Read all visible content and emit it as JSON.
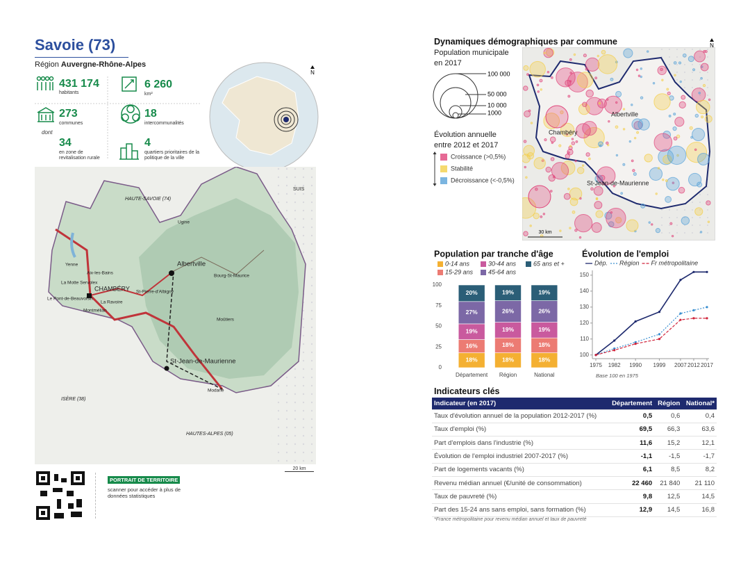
{
  "header": {
    "title": "Savoie (73)",
    "region_label": "Région",
    "region": "Auvergne-Rhône-Alpes"
  },
  "stats": [
    {
      "value": "431 174",
      "label": "habitants"
    },
    {
      "value": "6 260",
      "label": "km²"
    },
    {
      "value": "273",
      "label": "communes"
    },
    {
      "value": "18",
      "label": "intercommunalités"
    },
    {
      "value": "34",
      "label": "en zone de revitalisation rurale"
    },
    {
      "value": "4",
      "label": "quartiers prioritaires de la politique de la ville"
    }
  ],
  "dont": "dont",
  "north": "N",
  "left_map": {
    "labels": [
      "HAUTE-SAVOIE (74)",
      "SUIS",
      "Ugine",
      "Albertville",
      "Bourg-St-Maurice",
      "Yenne",
      "Aix-les-Bains",
      "La Motte Servolex",
      "CHAMBÉRY",
      "Le Pont-de-Beauvoisin",
      "La Ravoire",
      "Montmélian",
      "St-Pierre-d'Albigny",
      "Moûtiers",
      "St-Jean-de-Maurienne",
      "Modane",
      "ISÈRE (38)",
      "HAUTES-ALPES (05)"
    ],
    "scale": "20 km"
  },
  "qr": {
    "tag": "PORTRAIT DE TERRITOIRE",
    "text": "scanner pour accéder à plus de données statistiques"
  },
  "right_map": {
    "title": "Dynamiques démographiques par commune",
    "size_title": "Population municipale",
    "size_subtitle": "en 2017",
    "size_legend": [
      "100 000",
      "50 000",
      "10 000",
      "1000"
    ],
    "color_title": "Évolution annuelle",
    "color_subtitle": "entre 2012 et 2017",
    "color_legend": [
      {
        "label": "Croissance (>0,5%)",
        "color": "#e0457b"
      },
      {
        "label": "Stabilité",
        "color": "#f3cf4a"
      },
      {
        "label": "Décroissance (<-0,5%)",
        "color": "#5aa3d8"
      }
    ],
    "labels": [
      "Albertville",
      "Chambéry",
      "St-Jean-de-Maurienne"
    ],
    "scale": "30 km"
  },
  "chart_data": [
    {
      "type": "bar",
      "stacked": true,
      "title": "Population par tranche d'âge",
      "categories": [
        "Département",
        "Région",
        "National"
      ],
      "series": [
        {
          "name": "0-14 ans",
          "color": "#f4b032",
          "values": [
            18,
            18,
            18
          ],
          "value_labels": [
            "18%",
            "18%",
            "18%"
          ]
        },
        {
          "name": "15-29 ans",
          "color": "#ec7b73",
          "values": [
            16,
            18,
            18
          ],
          "value_labels": [
            "16%",
            "18%",
            "18%"
          ]
        },
        {
          "name": "30-44 ans",
          "color": "#c95a9e",
          "values": [
            19,
            19,
            19
          ],
          "value_labels": [
            "19%",
            "19%",
            "19%"
          ]
        },
        {
          "name": "45-64 ans",
          "color": "#7c68a6",
          "values": [
            27,
            26,
            26
          ],
          "value_labels": [
            "27%",
            "26%",
            "26%"
          ]
        },
        {
          "name": "65 ans et +",
          "color": "#2b5e77",
          "values": [
            20,
            19,
            19
          ],
          "value_labels": [
            "20%",
            "19%",
            "19%"
          ]
        }
      ],
      "ylim": [
        0,
        100
      ],
      "yticks": [
        0,
        25,
        50,
        75,
        100
      ]
    },
    {
      "type": "line",
      "title": "Évolution de l'emploi",
      "subtitle": "Base 100 en 1975",
      "x": [
        1975,
        1982,
        1990,
        1999,
        2007,
        2012,
        2017
      ],
      "series": [
        {
          "name": "Dép.",
          "color": "#1e2a6e",
          "values": [
            100,
            109,
            121,
            127,
            147,
            152,
            152
          ]
        },
        {
          "name": "Région",
          "color": "#3a8fd0",
          "values": [
            100,
            104,
            108,
            113,
            126,
            128,
            130
          ]
        },
        {
          "name": "Fr métropolitaine",
          "color": "#d0233a",
          "values": [
            100,
            103,
            107,
            110,
            122,
            123,
            123
          ]
        }
      ],
      "xlim": [
        1975,
        2017
      ],
      "ylim": [
        99,
        153
      ],
      "xticks": [
        1975,
        1982,
        1990,
        1999,
        2007,
        2012,
        2017
      ],
      "yticks": [
        100,
        110,
        120,
        130,
        140,
        150
      ]
    }
  ],
  "table": {
    "title": "Indicateurs clés",
    "header": [
      "Indicateur (en 2017)",
      "Département",
      "Région",
      "National*"
    ],
    "rows": [
      [
        "Taux d'évolution annuel de la population 2012-2017 (%)",
        "0,5",
        "0,6",
        "0,4"
      ],
      [
        "Taux d'emploi (%)",
        "69,5",
        "66,3",
        "63,6"
      ],
      [
        "Part d'emplois dans l'industrie (%)",
        "11,6",
        "15,2",
        "12,1"
      ],
      [
        "Évolution de l'emploi industriel 2007-2017 (%)",
        "-1,1",
        "-1,5",
        "-1,7"
      ],
      [
        "Part de logements vacants (%)",
        "6,1",
        "8,5",
        "8,2"
      ],
      [
        "Revenu médian annuel (€/unité de consommation)",
        "22 460",
        "21 840",
        "21 110"
      ],
      [
        "Taux de pauvreté (%)",
        "9,8",
        "12,5",
        "14,5"
      ],
      [
        "Part des 15-24 ans sans emploi, sans formation (%)",
        "12,9",
        "14,5",
        "16,8"
      ]
    ],
    "footnote": "*France métropolitaine pour revenu médian annuel et taux de pauvreté"
  }
}
